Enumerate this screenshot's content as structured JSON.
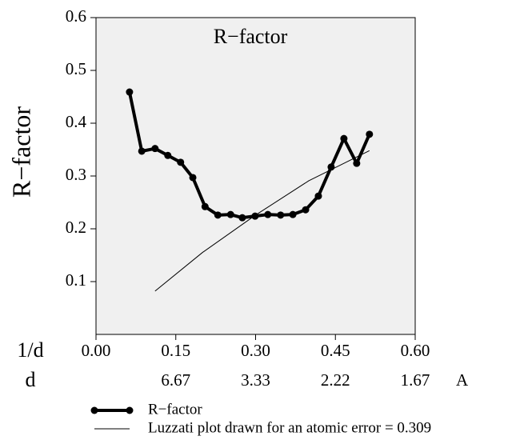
{
  "chart_data": {
    "type": "line",
    "title": "R−factor",
    "ylabel": "R−factor",
    "xlabel": "1/d",
    "x2label": "d",
    "x2unit": "A",
    "xlim": [
      0,
      0.6
    ],
    "ylim": [
      0,
      0.6
    ],
    "xticks": [
      {
        "value": 0,
        "label": "0.00"
      },
      {
        "value": 0.15,
        "label": "0.15"
      },
      {
        "value": 0.3,
        "label": "0.30"
      },
      {
        "value": 0.45,
        "label": "0.45"
      },
      {
        "value": 0.6,
        "label": "0.60"
      }
    ],
    "x2ticks": [
      {
        "value": 0.15,
        "label": "6.67"
      },
      {
        "value": 0.3,
        "label": "3.33"
      },
      {
        "value": 0.45,
        "label": "2.22"
      },
      {
        "value": 0.6,
        "label": "1.67"
      }
    ],
    "yticks": [
      0.1,
      0.2,
      0.3,
      0.4,
      0.5,
      0.6
    ],
    "background": "#f0f0f0",
    "series": [
      {
        "name": "R−factor",
        "color": "#000000",
        "marker": "circle",
        "x": [
          0.063,
          0.086,
          0.111,
          0.135,
          0.159,
          0.182,
          0.205,
          0.229,
          0.253,
          0.275,
          0.299,
          0.323,
          0.347,
          0.37,
          0.394,
          0.418,
          0.442,
          0.466,
          0.49,
          0.514
        ],
        "values": [
          0.459,
          0.347,
          0.352,
          0.339,
          0.326,
          0.297,
          0.242,
          0.226,
          0.227,
          0.221,
          0.224,
          0.227,
          0.226,
          0.227,
          0.236,
          0.262,
          0.317,
          0.371,
          0.324,
          0.379
        ]
      },
      {
        "name": "Luzzati plot drawn for an atomic error = 0.309",
        "color": "#000000",
        "x": [
          0.111,
          0.2,
          0.3,
          0.4,
          0.514
        ],
        "values": [
          0.082,
          0.155,
          0.226,
          0.291,
          0.348
        ]
      }
    ]
  }
}
